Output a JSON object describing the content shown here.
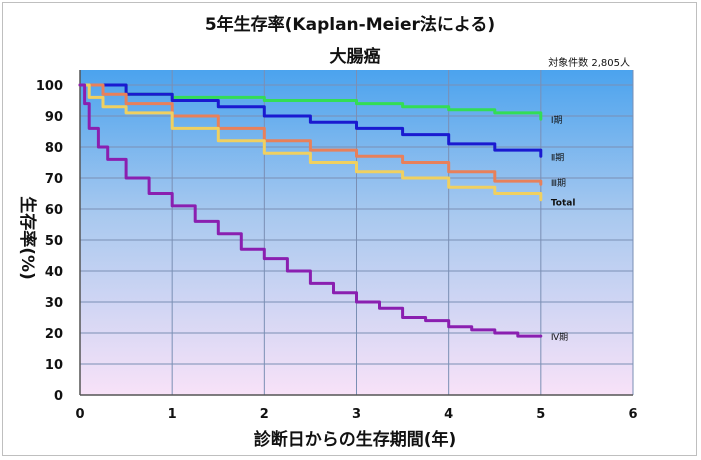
{
  "chart_data": {
    "type": "line",
    "title": "5年生存率(Kaplan-Meier法による)",
    "subtitle": "大腸癌",
    "note": "対象件数 2,805人",
    "xlabel": "診断日からの生存期間(年)",
    "ylabel": "生存率(%)",
    "xlim": [
      0,
      6
    ],
    "ylim": [
      0,
      100
    ],
    "xticks": [
      "0",
      "1",
      "2",
      "3",
      "4",
      "5",
      "6"
    ],
    "yticks": [
      "0",
      "10",
      "20",
      "30",
      "40",
      "50",
      "60",
      "70",
      "80",
      "90",
      "100"
    ],
    "grid": true,
    "series": [
      {
        "name": "Ⅰ期",
        "color": "#33dd55",
        "x": [
          0,
          0.5,
          1,
          1.5,
          2,
          2.5,
          3,
          3.5,
          4,
          4.5,
          5
        ],
        "y": [
          100,
          97,
          96,
          96,
          95,
          95,
          94,
          93,
          92,
          91,
          89
        ]
      },
      {
        "name": "Ⅱ期",
        "color": "#1a1ad0",
        "x": [
          0,
          0.5,
          1,
          1.5,
          2,
          2.5,
          3,
          3.5,
          4,
          4.5,
          5
        ],
        "y": [
          100,
          97,
          95,
          93,
          90,
          88,
          86,
          84,
          81,
          79,
          77
        ]
      },
      {
        "name": "Ⅲ期",
        "color": "#e8805a",
        "x": [
          0,
          0.25,
          0.5,
          1,
          1.5,
          2,
          2.5,
          3,
          3.5,
          4,
          4.5,
          5
        ],
        "y": [
          100,
          97,
          94,
          90,
          86,
          82,
          79,
          77,
          75,
          72,
          69,
          68
        ]
      },
      {
        "name": "Total",
        "color": "#f0d060",
        "x": [
          0,
          0.1,
          0.25,
          0.5,
          1,
          1.5,
          2,
          2.5,
          3,
          3.5,
          4,
          4.5,
          5
        ],
        "y": [
          100,
          96,
          93,
          91,
          86,
          82,
          78,
          75,
          72,
          70,
          67,
          65,
          63
        ]
      },
      {
        "name": "Ⅳ期",
        "color": "#8a1fb0",
        "x": [
          0,
          0.05,
          0.1,
          0.2,
          0.3,
          0.5,
          0.75,
          1,
          1.25,
          1.5,
          1.75,
          2,
          2.25,
          2.5,
          2.75,
          3,
          3.25,
          3.5,
          3.75,
          4,
          4.25,
          4.5,
          4.75,
          5
        ],
        "y": [
          100,
          94,
          86,
          80,
          76,
          70,
          65,
          61,
          56,
          52,
          47,
          44,
          40,
          36,
          33,
          30,
          28,
          25,
          24,
          22,
          21,
          20,
          19,
          19
        ]
      }
    ]
  }
}
